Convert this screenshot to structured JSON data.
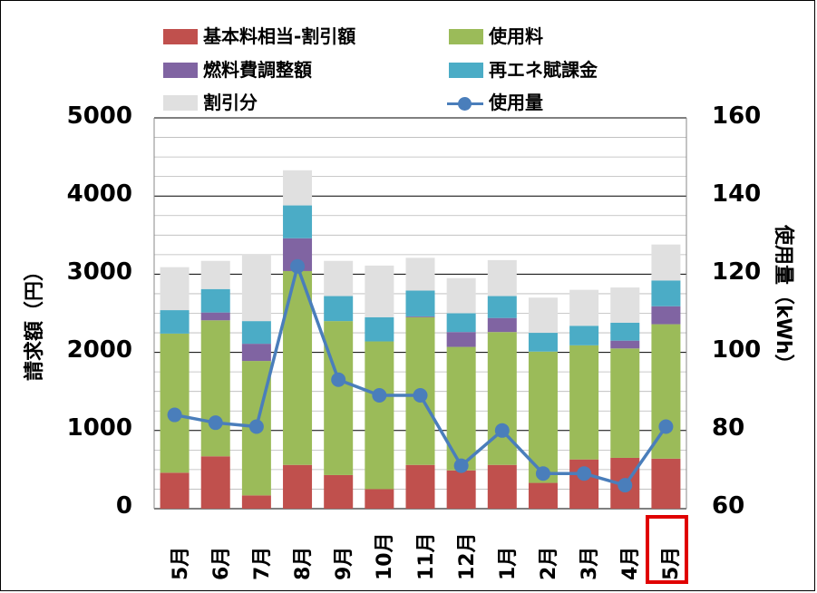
{
  "colors": {
    "base": "#c0504d",
    "usage": "#9bbb59",
    "fuel": "#8064a2",
    "renewable": "#4bacc6",
    "discount": "#e0e0e0",
    "usage_line": "#4a7ebb",
    "highlight": "#e00000"
  },
  "chart_data": {
    "type": "bar",
    "stacked": true,
    "categories": [
      "5月",
      "6月",
      "7月",
      "8月",
      "9月",
      "10月",
      "11月",
      "12月",
      "1月",
      "2月",
      "3月",
      "4月",
      "5月"
    ],
    "series": [
      {
        "name": "基本料相当-割引額",
        "key": "base",
        "axis": "left",
        "values": [
          460,
          670,
          170,
          560,
          430,
          250,
          560,
          490,
          560,
          330,
          630,
          650,
          640
        ]
      },
      {
        "name": "使用料",
        "key": "usage",
        "axis": "left",
        "values": [
          1780,
          1740,
          1720,
          2480,
          1970,
          1890,
          1890,
          1580,
          1700,
          1680,
          1460,
          1400,
          1720
        ]
      },
      {
        "name": "燃料費調整額",
        "key": "fuel",
        "axis": "left",
        "values": [
          0,
          100,
          220,
          420,
          0,
          0,
          10,
          190,
          180,
          0,
          0,
          100,
          230
        ]
      },
      {
        "name": "再エネ賦課金",
        "key": "renewable",
        "axis": "left",
        "values": [
          300,
          300,
          290,
          420,
          320,
          310,
          330,
          240,
          280,
          240,
          250,
          230,
          330
        ]
      },
      {
        "name": "割引分",
        "key": "discount",
        "axis": "left",
        "values": [
          550,
          360,
          850,
          450,
          450,
          660,
          420,
          450,
          460,
          450,
          460,
          450,
          460
        ]
      },
      {
        "name": "使用量",
        "key": "usage_line",
        "type": "line",
        "axis": "right",
        "values": [
          84,
          82,
          81,
          122,
          93,
          89,
          89,
          71,
          80,
          69,
          69,
          66,
          81
        ]
      }
    ],
    "ylabel": "請求額（円）",
    "ylabel_right": "使用量（kWh）",
    "ylim": [
      0,
      5000
    ],
    "ylim_right": [
      60,
      160
    ],
    "yticks": [
      "0",
      "1000",
      "2000",
      "3000",
      "4000",
      "5000"
    ],
    "yticks_right": [
      "60",
      "80",
      "100",
      "120",
      "140",
      "160"
    ],
    "grid": true,
    "legend_position": "top",
    "highlighted_category_index": 12
  }
}
